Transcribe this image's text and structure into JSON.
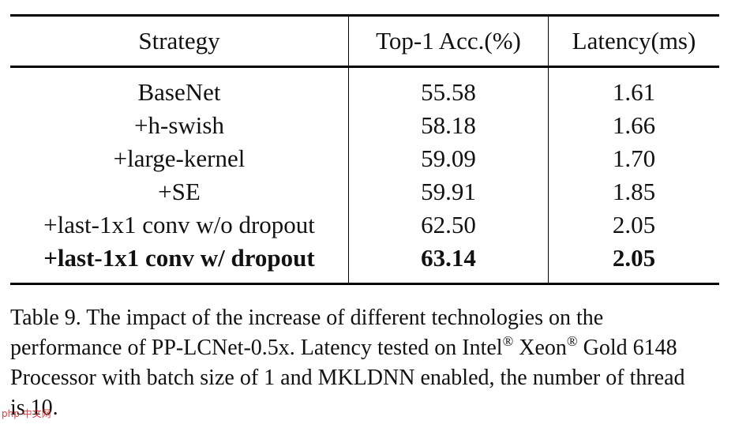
{
  "table": {
    "headers": {
      "strategy": "Strategy",
      "accuracy": "Top-1 Acc.(%)",
      "latency": "Latency(ms)"
    },
    "rows": [
      {
        "strategy": "BaseNet",
        "accuracy": "55.58",
        "latency": "1.61"
      },
      {
        "strategy": "+h-swish",
        "accuracy": "58.18",
        "latency": "1.66"
      },
      {
        "strategy": "+large-kernel",
        "accuracy": "59.09",
        "latency": "1.70"
      },
      {
        "strategy": "+SE",
        "accuracy": "59.91",
        "latency": "1.85"
      },
      {
        "strategy": "+last-1x1 conv w/o dropout",
        "accuracy": "62.50",
        "latency": "2.05"
      },
      {
        "strategy": "+last-1x1 conv w/ dropout",
        "accuracy": "63.14",
        "latency": "2.05"
      }
    ]
  },
  "caption": {
    "part1": "Table 9. The impact of the increase of different technologies on the performance of PP-LCNet-0.5x. Latency tested on Intel",
    "reg1": "®",
    "part2": " Xeon",
    "reg2": "®",
    "part3": " Gold 6148 Processor with batch size of 1 and MKLDNN enabled, the number of thread is 10."
  },
  "watermark": "php 中文网"
}
